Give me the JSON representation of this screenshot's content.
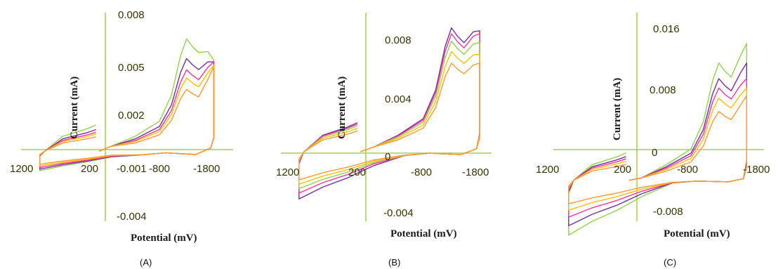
{
  "chart_data": [
    {
      "type": "line",
      "panel_label": "(A)",
      "xlabel": "Potential (mV)",
      "ylabel": "Current (mA)",
      "x_ticks": [
        "1200",
        "200",
        "-800",
        "-1800"
      ],
      "y_ticks": [
        "0.008",
        "0.005",
        "0.002",
        "-0.001",
        "-0.004"
      ],
      "xlim": [
        1200,
        -1800
      ],
      "ylim": [
        -0.004,
        0.008
      ],
      "series": [
        {
          "color": "#92d050",
          "peak": 0.0069,
          "end_high": 0.0056,
          "neg": -0.0012
        },
        {
          "color": "#7030a0",
          "peak": 0.0057,
          "end_high": 0.0055,
          "neg": -0.0011
        },
        {
          "color": "#ff3399",
          "peak": 0.005,
          "end_high": 0.0055,
          "neg": -0.001
        },
        {
          "color": "#ffc000",
          "peak": 0.0045,
          "end_high": 0.0053,
          "neg": -0.0009
        },
        {
          "color": "#ff9933",
          "peak": 0.0038,
          "end_high": 0.0052,
          "neg": -0.0008
        }
      ]
    },
    {
      "type": "line",
      "panel_label": "(B)",
      "xlabel": "Potential (mV)",
      "ylabel": "Current (mA)",
      "x_ticks": [
        "1200",
        "200",
        "-800",
        "-1800"
      ],
      "y_ticks": [
        "0.008",
        "0.004",
        "0",
        "-0.004"
      ],
      "xlim": [
        1200,
        -1800
      ],
      "ylim": [
        -0.006,
        0.01
      ],
      "series": [
        {
          "color": "#7030a0",
          "peak": 0.0084,
          "end_high": 0.0082,
          "neg": -0.0032
        },
        {
          "color": "#ff3399",
          "peak": 0.008,
          "end_high": 0.008,
          "neg": -0.0028
        },
        {
          "color": "#92d050",
          "peak": 0.0075,
          "end_high": 0.0074,
          "neg": -0.0025
        },
        {
          "color": "#ffc000",
          "peak": 0.0068,
          "end_high": 0.0066,
          "neg": -0.0022
        },
        {
          "color": "#ff9933",
          "peak": 0.006,
          "end_high": 0.006,
          "neg": -0.0019
        }
      ]
    },
    {
      "type": "line",
      "panel_label": "(C)",
      "xlabel": "Potential (mV)",
      "ylabel": "Current (mA)",
      "x_ticks": [
        "1200",
        "200",
        "-800",
        "-1800"
      ],
      "y_ticks": [
        "0.016",
        "0.008",
        "0",
        "-0.008"
      ],
      "xlim": [
        1200,
        -1800
      ],
      "ylim": [
        -0.01,
        0.02
      ],
      "series": [
        {
          "color": "#92d050",
          "peak": 0.015,
          "end_high": 0.0175,
          "neg": -0.007
        },
        {
          "color": "#7030a0",
          "peak": 0.013,
          "end_high": 0.015,
          "neg": -0.0058
        },
        {
          "color": "#ff3399",
          "peak": 0.0118,
          "end_high": 0.013,
          "neg": -0.0047
        },
        {
          "color": "#ffc000",
          "peak": 0.0105,
          "end_high": 0.0118,
          "neg": -0.0038
        },
        {
          "color": "#ff9933",
          "peak": 0.0088,
          "end_high": 0.0108,
          "neg": -0.003
        }
      ]
    }
  ]
}
